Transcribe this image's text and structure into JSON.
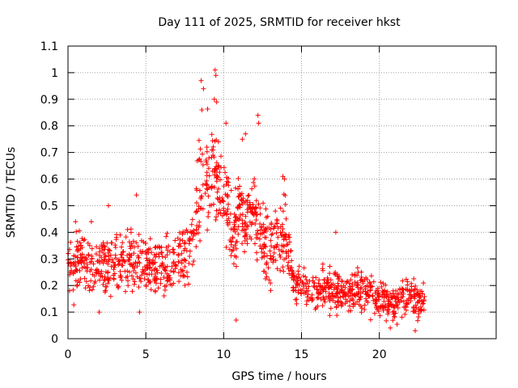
{
  "chart_data": {
    "type": "scatter",
    "title": "Day 111 of 2025, SRMTID for receiver hkst",
    "xlabel": "GPS time / hours",
    "ylabel": "SRMTID / TECUs",
    "xlim": [
      0,
      27.5
    ],
    "ylim": [
      0,
      1.1
    ],
    "x_ticks": [
      0,
      5,
      10,
      15,
      20
    ],
    "x_tick_labels": [
      "0",
      "5",
      "10",
      "15",
      "20"
    ],
    "y_ticks": [
      0,
      0.1,
      0.2,
      0.3,
      0.4,
      0.5,
      0.6,
      0.7,
      0.8,
      0.9,
      1.0,
      1.1
    ],
    "y_tick_labels": [
      "0",
      "0.1",
      "0.2",
      "0.3",
      "0.4",
      "0.5",
      "0.6",
      "0.7",
      "0.8",
      "0.9",
      "1",
      "1.1"
    ],
    "grid": true,
    "marker": "+",
    "series": [
      {
        "name": "SRMTID",
        "color": "#ff0000",
        "trend": {
          "x": [
            0,
            1,
            2,
            3,
            4,
            5,
            6,
            7,
            7.8,
            8.5,
            9,
            9.5,
            10,
            10.5,
            11,
            11.5,
            12,
            12.5,
            13,
            13.5,
            14,
            14.5,
            15,
            16,
            17,
            18,
            19,
            20,
            21,
            22,
            22.9
          ],
          "y": [
            0.27,
            0.3,
            0.26,
            0.29,
            0.3,
            0.29,
            0.28,
            0.3,
            0.33,
            0.55,
            0.62,
            0.6,
            0.55,
            0.38,
            0.46,
            0.45,
            0.48,
            0.35,
            0.33,
            0.36,
            0.4,
            0.2,
            0.18,
            0.19,
            0.18,
            0.18,
            0.17,
            0.15,
            0.12,
            0.16,
            0.13
          ]
        },
        "spread": {
          "x": [
            0,
            7.5,
            8.5,
            10,
            11,
            13.9,
            14.5,
            22.9
          ],
          "y": [
            0.08,
            0.08,
            0.14,
            0.12,
            0.1,
            0.1,
            0.05,
            0.05
          ]
        },
        "n_points": 1400,
        "highlights": [
          {
            "x": 8.55,
            "y": 0.97
          },
          {
            "x": 9.45,
            "y": 1.01
          },
          {
            "x": 9.5,
            "y": 0.99
          },
          {
            "x": 9.4,
            "y": 0.9
          },
          {
            "x": 9.55,
            "y": 0.89
          },
          {
            "x": 8.7,
            "y": 0.94
          },
          {
            "x": 8.6,
            "y": 0.86
          },
          {
            "x": 12.2,
            "y": 0.84
          },
          {
            "x": 12.25,
            "y": 0.81
          },
          {
            "x": 10.15,
            "y": 0.81
          },
          {
            "x": 11.4,
            "y": 0.77
          },
          {
            "x": 11.2,
            "y": 0.75
          },
          {
            "x": 4.4,
            "y": 0.54
          },
          {
            "x": 2.6,
            "y": 0.5
          },
          {
            "x": 1.5,
            "y": 0.44
          },
          {
            "x": 13.8,
            "y": 0.61
          },
          {
            "x": 13.9,
            "y": 0.6
          },
          {
            "x": 17.2,
            "y": 0.4
          },
          {
            "x": 22.3,
            "y": 0.03
          },
          {
            "x": 10.8,
            "y": 0.07
          },
          {
            "x": 20.7,
            "y": 0.04
          },
          {
            "x": 2.0,
            "y": 0.1
          },
          {
            "x": 4.6,
            "y": 0.1
          }
        ]
      }
    ]
  }
}
